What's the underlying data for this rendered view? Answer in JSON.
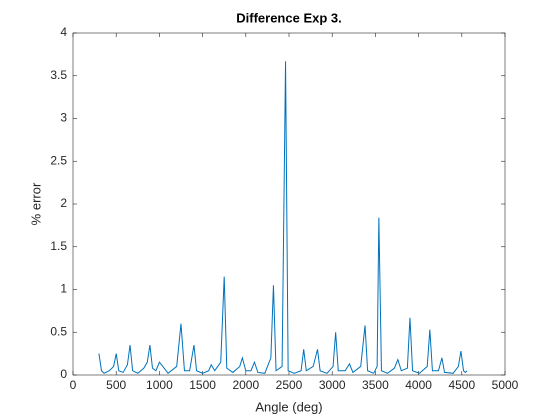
{
  "chart_data": {
    "type": "line",
    "title": "Difference Exp 3.",
    "x_label": "Angle (deg)",
    "y_label": "% error",
    "x": [
      300,
      330,
      360,
      420,
      470,
      500,
      530,
      580,
      630,
      660,
      690,
      750,
      820,
      860,
      890,
      920,
      960,
      1000,
      1040,
      1100,
      1200,
      1250,
      1290,
      1350,
      1400,
      1430,
      1500,
      1570,
      1600,
      1640,
      1710,
      1750,
      1780,
      1850,
      1930,
      1960,
      2000,
      2060,
      2100,
      2140,
      2220,
      2290,
      2320,
      2350,
      2420,
      2460,
      2490,
      2560,
      2640,
      2670,
      2700,
      2780,
      2830,
      2860,
      2940,
      3010,
      3040,
      3070,
      3150,
      3200,
      3240,
      3330,
      3380,
      3410,
      3480,
      3520,
      3540,
      3570,
      3640,
      3720,
      3760,
      3800,
      3870,
      3900,
      3930,
      4010,
      4100,
      4130,
      4160,
      4230,
      4270,
      4300,
      4400,
      4460,
      4490,
      4520,
      4540,
      4560
    ],
    "series": [
      {
        "name": "% error",
        "color": "#0072bd",
        "values": [
          0.25,
          0.05,
          0.02,
          0.05,
          0.1,
          0.25,
          0.05,
          0.03,
          0.12,
          0.35,
          0.05,
          0.02,
          0.08,
          0.15,
          0.35,
          0.08,
          0.05,
          0.15,
          0.1,
          0.02,
          0.1,
          0.6,
          0.05,
          0.05,
          0.35,
          0.05,
          0.02,
          0.05,
          0.12,
          0.05,
          0.15,
          1.15,
          0.08,
          0.03,
          0.1,
          0.2,
          0.05,
          0.05,
          0.15,
          0.03,
          0.02,
          0.2,
          1.05,
          0.05,
          0.1,
          3.67,
          0.05,
          0.02,
          0.05,
          0.3,
          0.05,
          0.1,
          0.3,
          0.05,
          0.02,
          0.1,
          0.5,
          0.05,
          0.05,
          0.13,
          0.03,
          0.1,
          0.58,
          0.05,
          0.02,
          0.1,
          1.84,
          0.05,
          0.02,
          0.08,
          0.18,
          0.05,
          0.08,
          0.67,
          0.05,
          0.02,
          0.1,
          0.53,
          0.05,
          0.05,
          0.2,
          0.03,
          0.02,
          0.1,
          0.28,
          0.05,
          0.03,
          0.05
        ]
      }
    ],
    "xlim": [
      0,
      5000
    ],
    "xticks": [
      0,
      500,
      1000,
      1500,
      2000,
      2500,
      3000,
      3500,
      4000,
      4500,
      5000
    ],
    "ylim": [
      0,
      4
    ],
    "yticks": [
      0,
      0.5,
      1,
      1.5,
      2,
      2.5,
      3,
      3.5,
      4
    ]
  }
}
